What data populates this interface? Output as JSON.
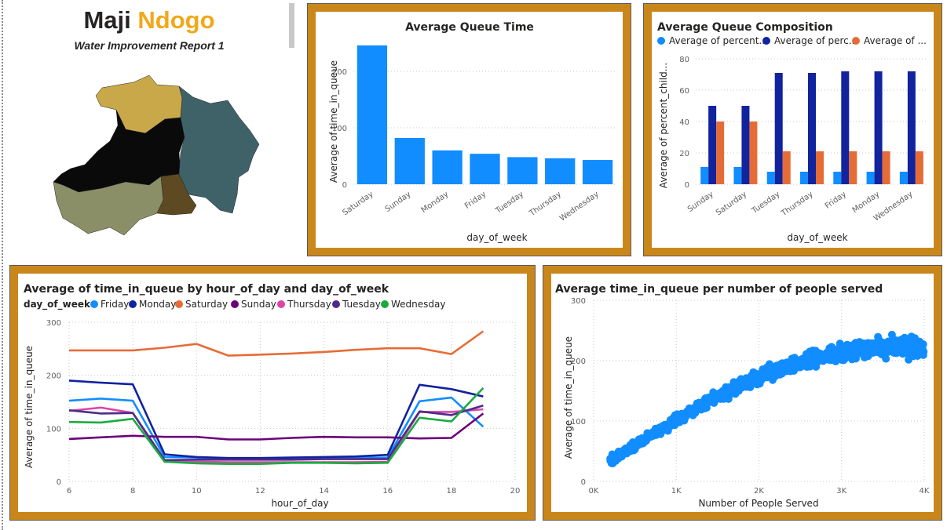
{
  "report": {
    "title_word1": "Maji",
    "title_word2": "Ndogo",
    "subtitle": "Water Improvement Report 1"
  },
  "colors": {
    "panel_border": "#c9871b",
    "title_accent": "#f2a818",
    "bar_blue": "#118dff",
    "dark_blue": "#12239e",
    "orange": "#e66c37",
    "map_regions": [
      "#c9a84a",
      "#0a0a0a",
      "#3f6269",
      "#8a8f68",
      "#5e4a22"
    ]
  },
  "icons": [
    "map-icon"
  ],
  "charts": {
    "queue_time": {
      "chart_data": {
        "type": "bar",
        "title": "Average Queue Time",
        "xlabel": "day_of_week",
        "ylabel": "Average of time_in_queue",
        "categories": [
          "Saturday",
          "Sunday",
          "Monday",
          "Friday",
          "Tuesday",
          "Thursday",
          "Wednesday"
        ],
        "values": [
          246,
          82,
          60,
          54,
          48,
          46,
          43
        ],
        "ylim": [
          0,
          250
        ],
        "yticks": [
          0,
          100,
          200
        ],
        "color": "#118dff",
        "grid": true
      }
    },
    "queue_composition": {
      "chart_data": {
        "type": "bar",
        "title": "Average Queue Composition",
        "xlabel": "day_of_week",
        "ylabel": "Average of percent_child...",
        "categories": [
          "Sunday",
          "Saturday",
          "Tuesday",
          "Thursday",
          "Friday",
          "Monday",
          "Wednesday"
        ],
        "series": [
          {
            "name": "Average of percent...",
            "color": "#118dff",
            "values": [
              11,
              11,
              8,
              8,
              8,
              8,
              8
            ]
          },
          {
            "name": "Average of perc...",
            "color": "#12239e",
            "values": [
              50,
              50,
              71,
              71,
              72,
              72,
              72
            ]
          },
          {
            "name": "Average of ...",
            "color": "#e66c37",
            "values": [
              40,
              40,
              21,
              21,
              21,
              21,
              21
            ]
          }
        ],
        "ylim": [
          0,
          80
        ],
        "yticks": [
          0,
          20,
          40,
          60,
          80
        ],
        "legend": "top",
        "grid": true
      }
    },
    "hourly": {
      "chart_data": {
        "type": "line",
        "title": "Average of time_in_queue by hour_of_day and day_of_week",
        "legend_title": "day_of_week",
        "xlabel": "hour_of_day",
        "ylabel": "Average of time_in_queue",
        "x": [
          6,
          7,
          8,
          9,
          10,
          11,
          12,
          13,
          14,
          15,
          16,
          17,
          18,
          19
        ],
        "xlim": [
          6,
          20
        ],
        "xticks": [
          6,
          8,
          10,
          12,
          14,
          16,
          18,
          20
        ],
        "ylim": [
          0,
          300
        ],
        "yticks": [
          0,
          100,
          200,
          300
        ],
        "legend": "top",
        "grid": true,
        "series": [
          {
            "name": "Friday",
            "color": "#118dff",
            "values": [
              152,
              156,
              152,
              46,
              45,
              42,
              42,
              43,
              45,
              44,
              45,
              151,
              158,
              103
            ]
          },
          {
            "name": "Monday",
            "color": "#12239e",
            "values": [
              190,
              186,
              183,
              51,
              46,
              44,
              44,
              45,
              46,
              47,
              50,
              182,
              174,
              160
            ]
          },
          {
            "name": "Saturday",
            "color": "#e66c37",
            "values": [
              247,
              247,
              247,
              252,
              259,
              237,
              239,
              241,
              244,
              248,
              251,
              251,
              240,
              283
            ]
          },
          {
            "name": "Sunday",
            "color": "#6b007b",
            "values": [
              80,
              83,
              86,
              84,
              84,
              79,
              79,
              82,
              84,
              83,
              83,
              81,
              82,
              128
            ]
          },
          {
            "name": "Thursday",
            "color": "#e044a7",
            "values": [
              133,
              139,
              129,
              37,
              37,
              36,
              36,
              36,
              36,
              36,
              37,
              131,
              131,
              136
            ]
          },
          {
            "name": "Tuesday",
            "color": "#4b2d89",
            "values": [
              134,
              128,
              129,
              40,
              41,
              41,
              41,
              41,
              42,
              42,
              42,
              132,
              125,
              143
            ]
          },
          {
            "name": "Wednesday",
            "color": "#1aab40",
            "values": [
              112,
              111,
              118,
              37,
              34,
              33,
              33,
              35,
              35,
              34,
              35,
              120,
              113,
              176
            ]
          }
        ]
      }
    },
    "scatter": {
      "chart_data": {
        "type": "scatter",
        "title": "Average time_in_queue per number of people served",
        "xlabel": "Number of People Served",
        "ylabel": "Average of time_in_queue",
        "xlim": [
          0,
          4000
        ],
        "ylim": [
          0,
          300
        ],
        "xticks": [
          "0K",
          "1K",
          "2K",
          "3K",
          "4K"
        ],
        "yticks": [
          0,
          100,
          200,
          300
        ],
        "color": "#118dff",
        "grid": true,
        "trend_points": [
          [
            200,
            35
          ],
          [
            400,
            50
          ],
          [
            600,
            68
          ],
          [
            800,
            85
          ],
          [
            1000,
            102
          ],
          [
            1200,
            118
          ],
          [
            1400,
            133
          ],
          [
            1600,
            147
          ],
          [
            1800,
            160
          ],
          [
            2000,
            172
          ],
          [
            2200,
            183
          ],
          [
            2400,
            193
          ],
          [
            2600,
            201
          ],
          [
            2800,
            208
          ],
          [
            3000,
            214
          ],
          [
            3200,
            218
          ],
          [
            3400,
            221
          ],
          [
            3600,
            222
          ],
          [
            3800,
            222
          ],
          [
            4000,
            221
          ]
        ],
        "x_range": [
          200,
          4000
        ],
        "y_spread": 16,
        "point_count": 900
      }
    }
  }
}
